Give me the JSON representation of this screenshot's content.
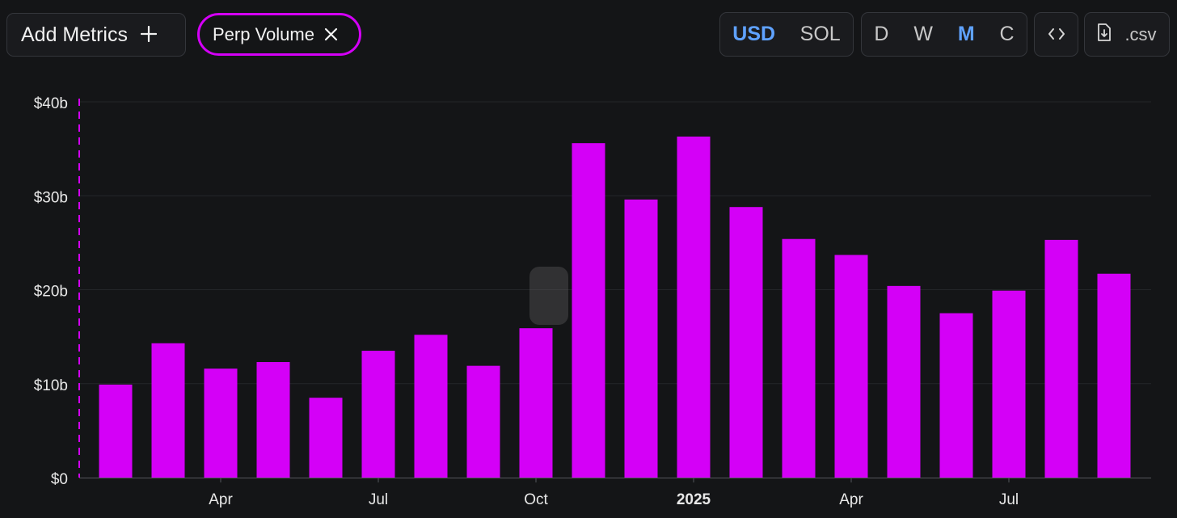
{
  "toolbar": {
    "add_metrics_label": "Add Metrics",
    "add_icon": "plus-icon",
    "metric_pill_label": "Perp Volume",
    "metric_pill_close_icon": "close-icon",
    "currency_options": [
      "USD",
      "SOL"
    ],
    "currency_selected": "USD",
    "period_options": [
      "D",
      "W",
      "M",
      "C"
    ],
    "period_selected": "M",
    "embed_icon": "code-icon",
    "csv_icon": "file-download-icon",
    "csv_label": ".csv"
  },
  "colors": {
    "background": "#141517",
    "bar": "#d400f7",
    "accent_selected": "#5fa2ff",
    "grid": "#24262a",
    "axis_text": "#e8e8e8"
  },
  "chart_data": {
    "type": "bar",
    "x_tick_labels": [
      "Apr",
      "Jul",
      "Oct",
      "2025",
      "Apr",
      "Jul"
    ],
    "y_tick_labels": [
      "$0",
      "$10b",
      "$20b",
      "$30b",
      "$40b"
    ],
    "ylim": [
      0,
      40
    ],
    "y_unit": "billions USD",
    "grid": true,
    "series": [
      {
        "values": [
          9.9,
          14.3,
          11.6,
          12.3,
          8.5,
          13.5,
          15.2,
          11.9,
          15.9,
          35.6,
          29.6,
          36.3,
          28.8,
          25.4,
          23.7,
          20.4,
          17.5,
          19.9,
          25.3,
          21.7
        ]
      }
    ],
    "tick_bar_index": [
      2,
      5,
      8,
      11,
      14,
      17
    ]
  }
}
